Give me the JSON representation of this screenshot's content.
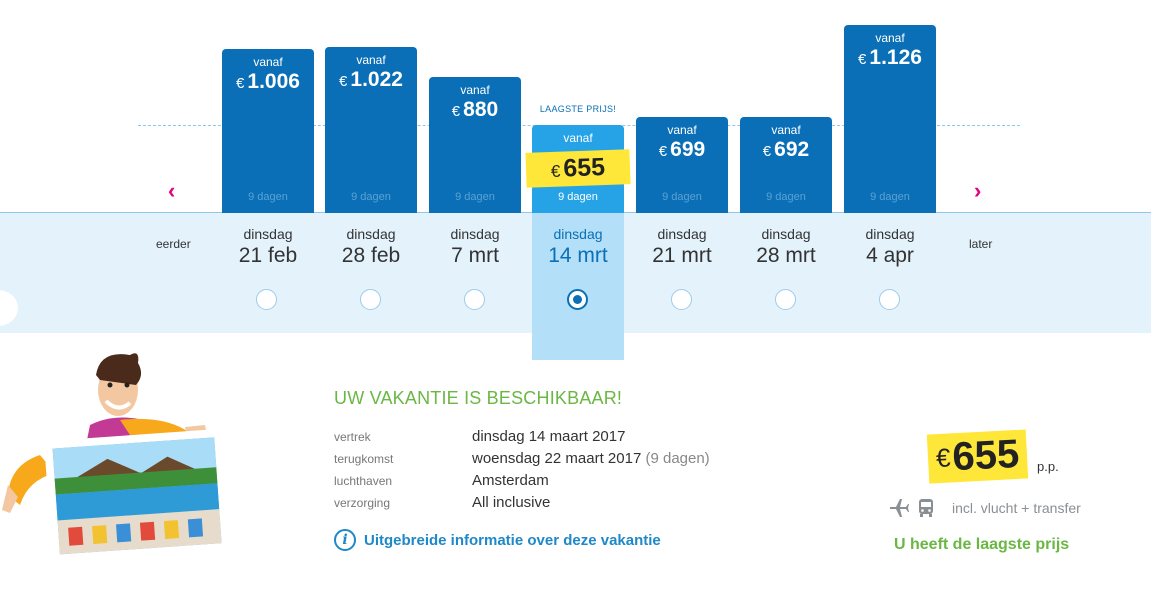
{
  "cheapest_label": "LAAGSTE PRIJS!",
  "nav": {
    "prev_label": "eerder",
    "next_label": "later"
  },
  "bars": [
    {
      "vanaf": "vanaf",
      "currency": "€",
      "price": "1.006",
      "days": "9 dagen",
      "day": "dinsdag",
      "date": "21 feb",
      "selected": false
    },
    {
      "vanaf": "vanaf",
      "currency": "€",
      "price": "1.022",
      "days": "9 dagen",
      "day": "dinsdag",
      "date": "28 feb",
      "selected": false
    },
    {
      "vanaf": "vanaf",
      "currency": "€",
      "price": "880",
      "days": "9 dagen",
      "day": "dinsdag",
      "date": "7 mrt",
      "selected": false
    },
    {
      "vanaf": "vanaf",
      "currency": "€",
      "price": "655",
      "days": "9 dagen",
      "day": "dinsdag",
      "date": "14 mrt",
      "selected": true
    },
    {
      "vanaf": "vanaf",
      "currency": "€",
      "price": "699",
      "days": "9 dagen",
      "day": "dinsdag",
      "date": "21 mrt",
      "selected": false
    },
    {
      "vanaf": "vanaf",
      "currency": "€",
      "price": "692",
      "days": "9 dagen",
      "day": "dinsdag",
      "date": "28 mrt",
      "selected": false
    },
    {
      "vanaf": "vanaf",
      "currency": "€",
      "price": "1.126",
      "days": "9 dagen",
      "day": "dinsdag",
      "date": "4 apr",
      "selected": false
    }
  ],
  "details": {
    "heading": "UW VAKANTIE IS BESCHIKBAAR!",
    "rows": [
      {
        "label": "vertrek",
        "value": "dinsdag 14 maart 2017",
        "extra": ""
      },
      {
        "label": "terugkomst",
        "value": "woensdag 22 maart 2017",
        "extra": "(9 dagen)"
      },
      {
        "label": "luchthaven",
        "value": "Amsterdam",
        "extra": ""
      },
      {
        "label": "verzorging",
        "value": "All inclusive",
        "extra": ""
      }
    ],
    "info_link": "Uitgebreide informatie over deze vakantie",
    "info_icon": "info-icon"
  },
  "summary": {
    "currency": "€",
    "price": "655",
    "per_person": "p.p.",
    "transport_text": "incl. vlucht + transfer",
    "transport_icons": [
      "plane-icon",
      "bus-icon"
    ],
    "lowest_text": "U heeft de laagste prijs"
  },
  "colors": {
    "bar": "#0a6fb6",
    "bar_selected": "#25a3e6",
    "highlight": "#ffe73a",
    "accent_green": "#6ab744",
    "arrow": "#e6007e"
  }
}
